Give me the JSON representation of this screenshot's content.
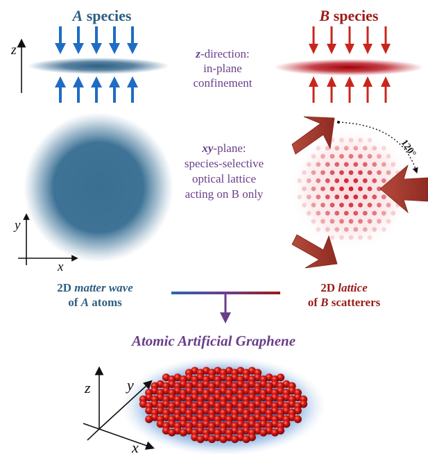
{
  "colors": {
    "species_a": "#2e5e82",
    "species_b": "#9a1c16",
    "middle_text": "#6a3f8a"
  },
  "species_a": {
    "letter": "A",
    "label": " species"
  },
  "species_b": {
    "letter": "B",
    "label": " species"
  },
  "z_direction": {
    "axis": "z",
    "line1": "-direction:",
    "line2": "in-plane",
    "line3": "confinement"
  },
  "xy_plane": {
    "axis": "xy",
    "line1": "-plane:",
    "line2": "species-selective",
    "line3": "optical lattice",
    "line4": "acting on B only"
  },
  "angle_label": "120°",
  "left_caption": {
    "prefix": "2D ",
    "italic": "matter wave",
    "line2_prefix": "of ",
    "letter": "A",
    "line2_suffix": " atoms"
  },
  "right_caption": {
    "prefix": "2D ",
    "italic": "lattice",
    "line2_prefix": "of ",
    "letter": "B",
    "line2_suffix": " scatterers"
  },
  "result_title": "Atomic Artificial Graphene",
  "axes_labels": {
    "x": "x",
    "y": "y",
    "z": "z"
  }
}
